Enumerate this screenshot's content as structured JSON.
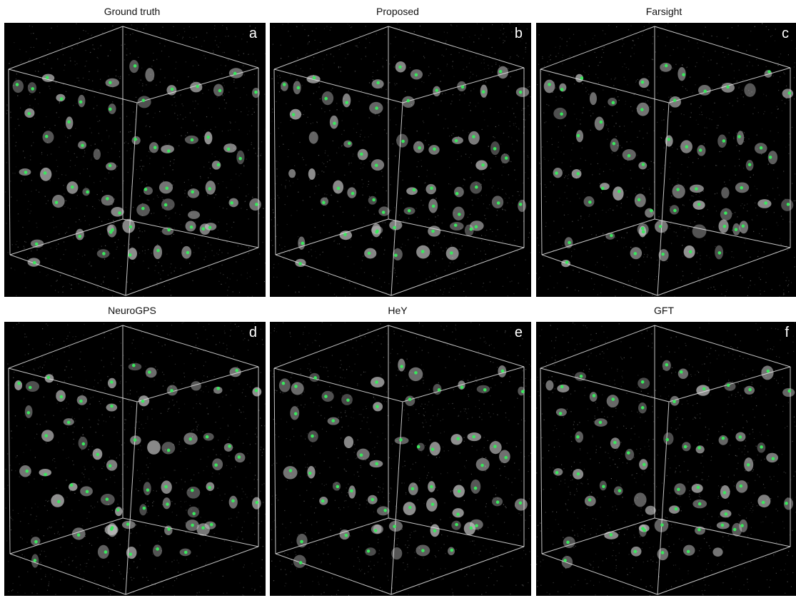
{
  "colors": {
    "background": "#000000",
    "edge": "#e8e8e8",
    "marker": "#39e85c",
    "cell": "#cfcfcf"
  },
  "panels": [
    {
      "title": "Ground truth",
      "letter": "a"
    },
    {
      "title": "Proposed",
      "letter": "b"
    },
    {
      "title": "Farsight",
      "letter": "c"
    },
    {
      "title": "NeuroGPS",
      "letter": "d"
    },
    {
      "title": "HeY",
      "letter": "e"
    },
    {
      "title": "GFT",
      "letter": "f"
    }
  ]
}
